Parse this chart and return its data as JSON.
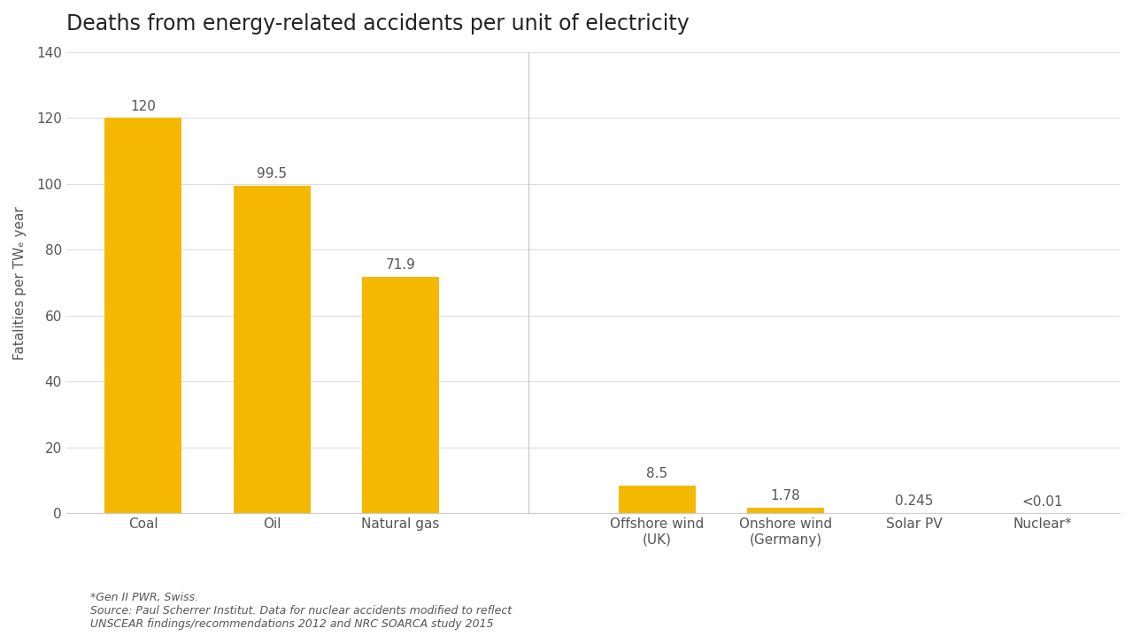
{
  "title": "Deaths from energy-related accidents per unit of electricity",
  "categories": [
    "Coal",
    "Oil",
    "Natural gas",
    "Offshore wind\n(UK)",
    "Onshore wind\n(Germany)",
    "Solar PV",
    "Nuclear*"
  ],
  "x_positions": [
    0,
    1,
    2,
    4,
    5,
    6,
    7
  ],
  "values": [
    120,
    99.5,
    71.9,
    8.5,
    1.78,
    0.245,
    0.01
  ],
  "labels": [
    "120",
    "99.5",
    "71.9",
    "8.5",
    "1.78",
    "0.245",
    "<0.01"
  ],
  "bar_color": "#F5B800",
  "ylabel": "Fatalities per TWₑ year",
  "ylim": [
    0,
    140
  ],
  "yticks": [
    0,
    20,
    40,
    60,
    80,
    100,
    120,
    140
  ],
  "xlim": [
    -0.6,
    7.6
  ],
  "background_color": "#ffffff",
  "footnote_line1": "*Gen II PWR, Swiss.",
  "footnote_line2": "Source: Paul Scherrer Institut. Data for nuclear accidents modified to reflect",
  "footnote_line3": "UNSCEAR findings/recommendations 2012 and NRC SOARCA study 2015",
  "title_fontsize": 17,
  "label_fontsize": 11,
  "tick_fontsize": 11,
  "ylabel_fontsize": 11,
  "footnote_fontsize": 9,
  "separator_x": 3.0
}
